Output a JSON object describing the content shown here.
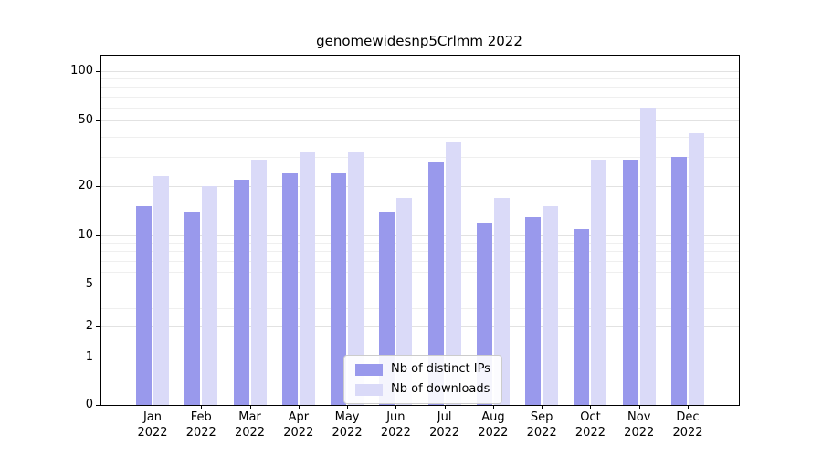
{
  "chart_data": {
    "type": "bar",
    "title": "genomewidesnp5Crlmm 2022",
    "x_categories": [
      "Jan 2022",
      "Feb 2022",
      "Mar 2022",
      "Apr 2022",
      "May 2022",
      "Jun 2022",
      "Jul 2022",
      "Aug 2022",
      "Sep 2022",
      "Oct 2022",
      "Nov 2022",
      "Dec 2022"
    ],
    "series": [
      {
        "name": "Nb of distinct IPs",
        "color": "#9999ec",
        "values": [
          15,
          14,
          22,
          24,
          24,
          14,
          28,
          12,
          13,
          11,
          29,
          30
        ]
      },
      {
        "name": "Nb of downloads",
        "color": "#dadaf8",
        "values": [
          23,
          20,
          29,
          32,
          32,
          17,
          37,
          17,
          15,
          29,
          60,
          42
        ]
      }
    ],
    "y_scale": "symlog",
    "y_ticks": [
      0,
      1,
      2,
      5,
      10,
      20,
      50,
      100
    ],
    "y_minor_ticks": [
      3,
      4,
      6,
      7,
      8,
      9,
      30,
      40,
      60,
      70,
      80,
      90
    ],
    "ylim": [
      0,
      100
    ],
    "grid": "horizontal",
    "legend_position": "lower center"
  }
}
